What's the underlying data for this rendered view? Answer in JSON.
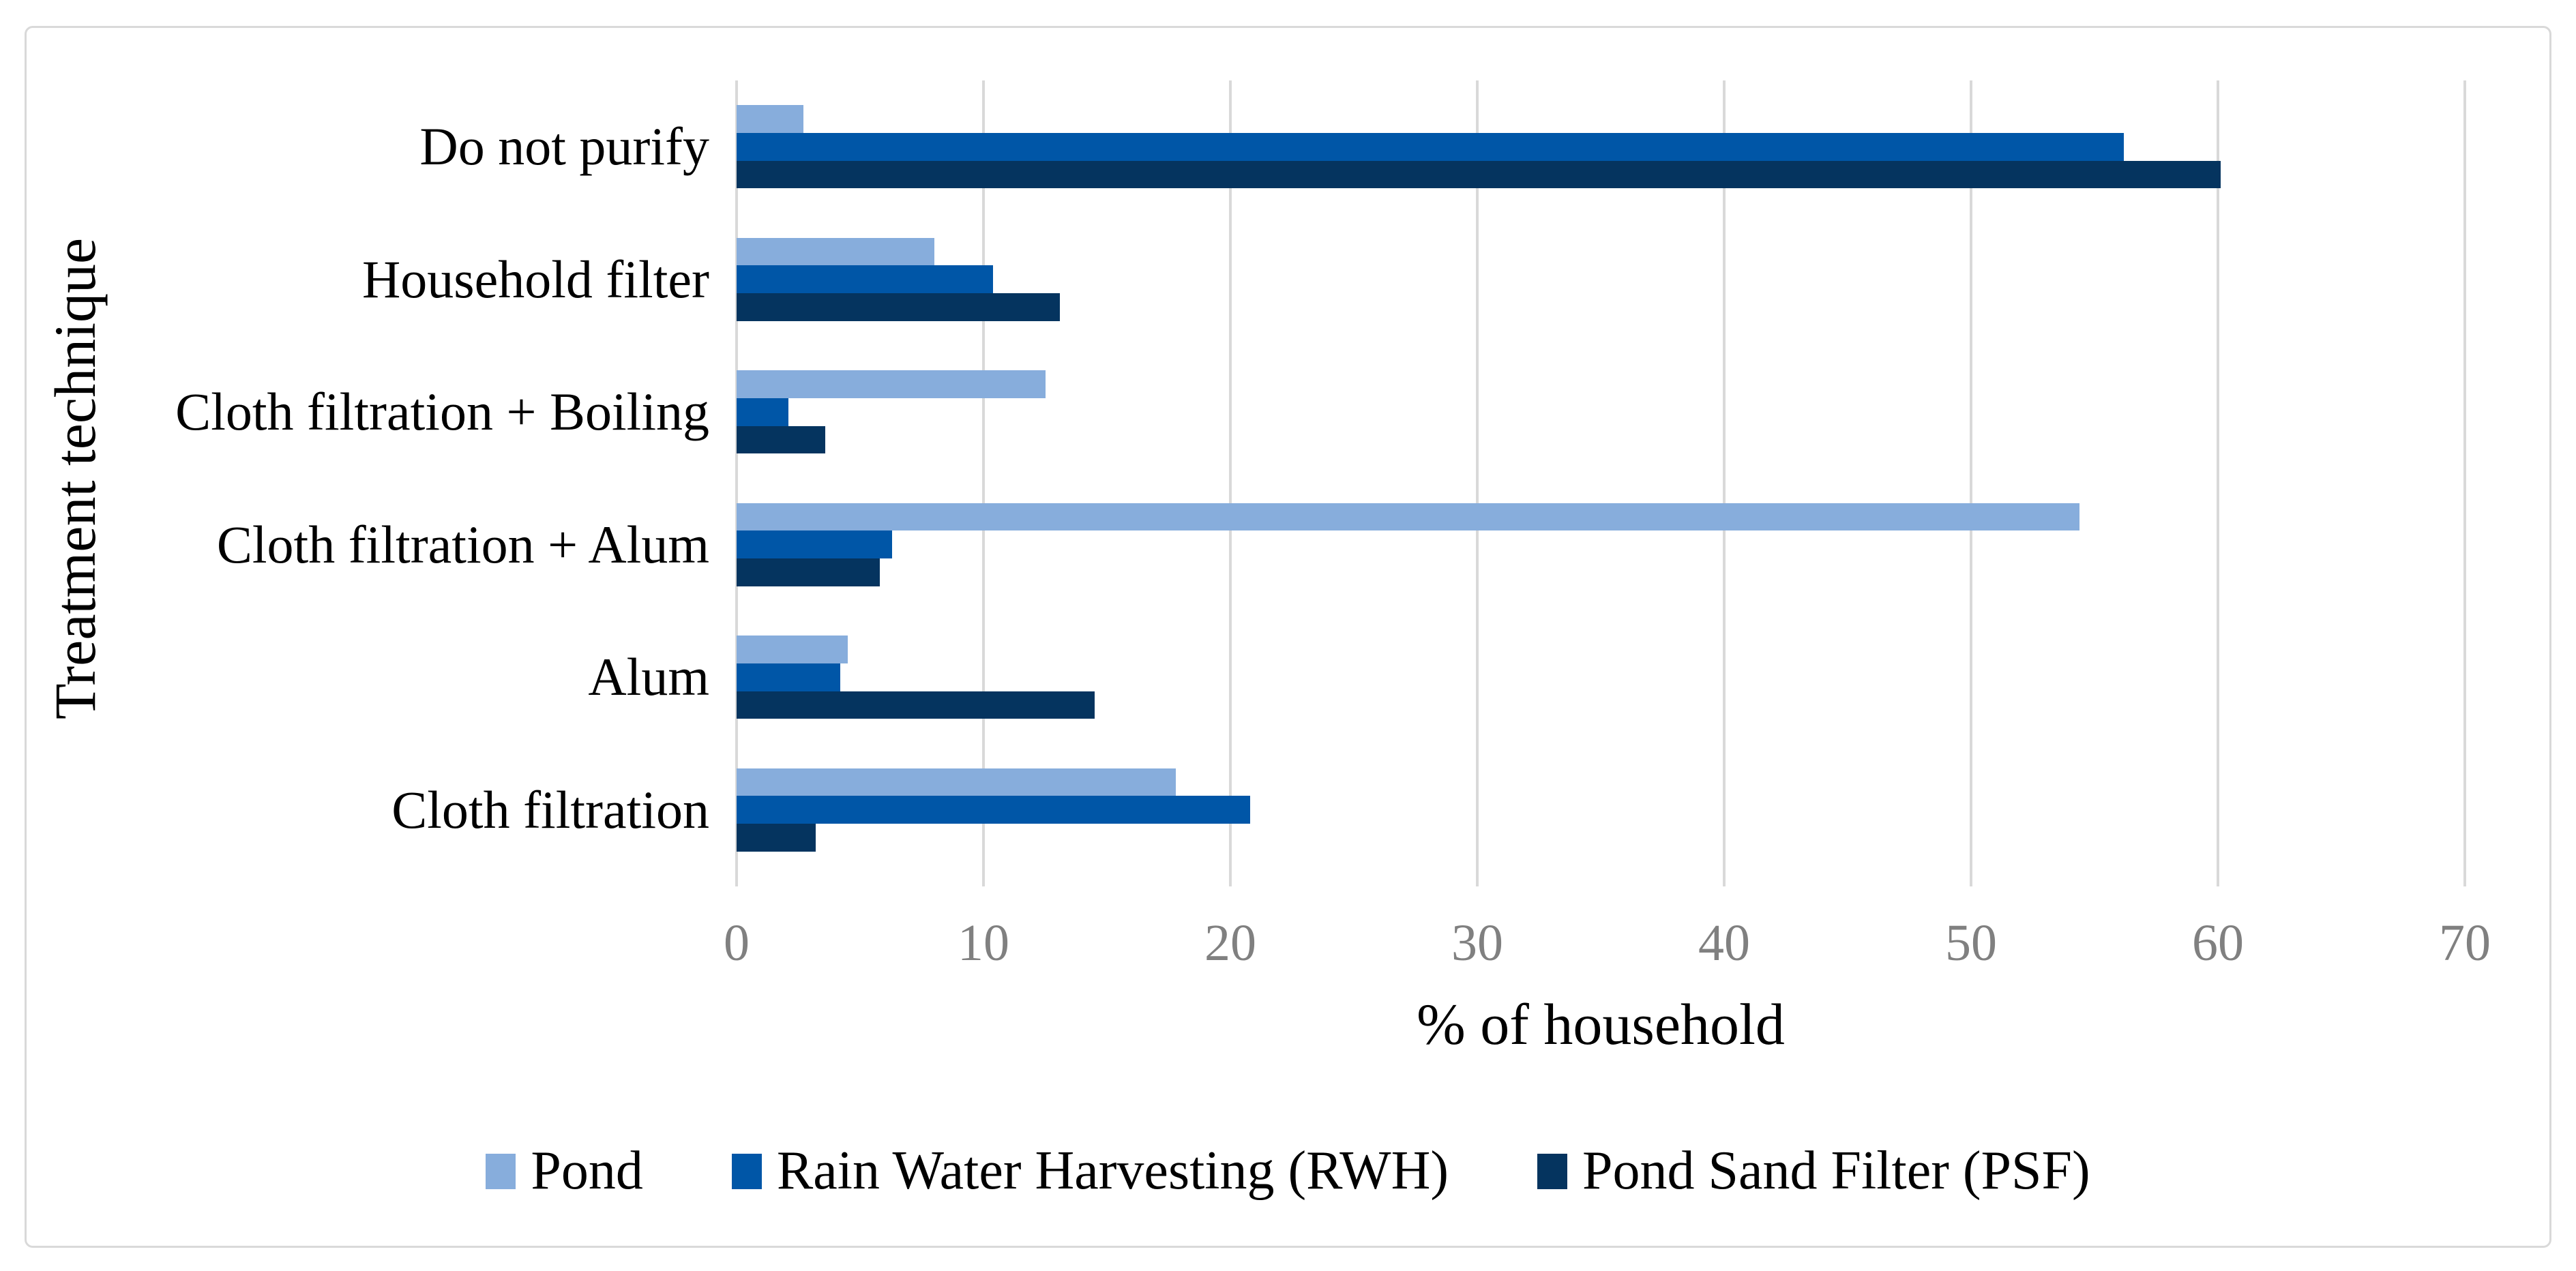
{
  "chart_data": {
    "type": "bar",
    "orientation": "horizontal",
    "title": "",
    "xlabel": "% of household",
    "ylabel": "Treatment technique",
    "xlim": [
      0,
      70
    ],
    "xticks": [
      0,
      10,
      20,
      30,
      40,
      50,
      60,
      70
    ],
    "grid": true,
    "legend_position": "bottom",
    "categories": [
      "Do not purify",
      "Household filter",
      "Cloth filtration + Boiling",
      "Cloth filtration + Alum",
      "Alum",
      "Cloth filtration"
    ],
    "series": [
      {
        "name": "Pond",
        "color": "#87ADDC",
        "values": [
          2.7,
          8.0,
          12.5,
          54.4,
          4.5,
          17.8
        ]
      },
      {
        "name": "Rain Water Harvesting (RWH)",
        "color": "#0056A7",
        "values": [
          56.2,
          10.4,
          2.1,
          6.3,
          4.2,
          20.8
        ]
      },
      {
        "name": "Pond Sand Filter (PSF)",
        "color": "#05345F",
        "values": [
          60.1,
          13.1,
          3.6,
          5.8,
          14.5,
          3.2
        ]
      }
    ]
  },
  "colors": {
    "gridline": "#D9D9D9",
    "tick_label": "#808080",
    "frame_border": "#D9D9D9",
    "background": "#FFFFFF"
  }
}
